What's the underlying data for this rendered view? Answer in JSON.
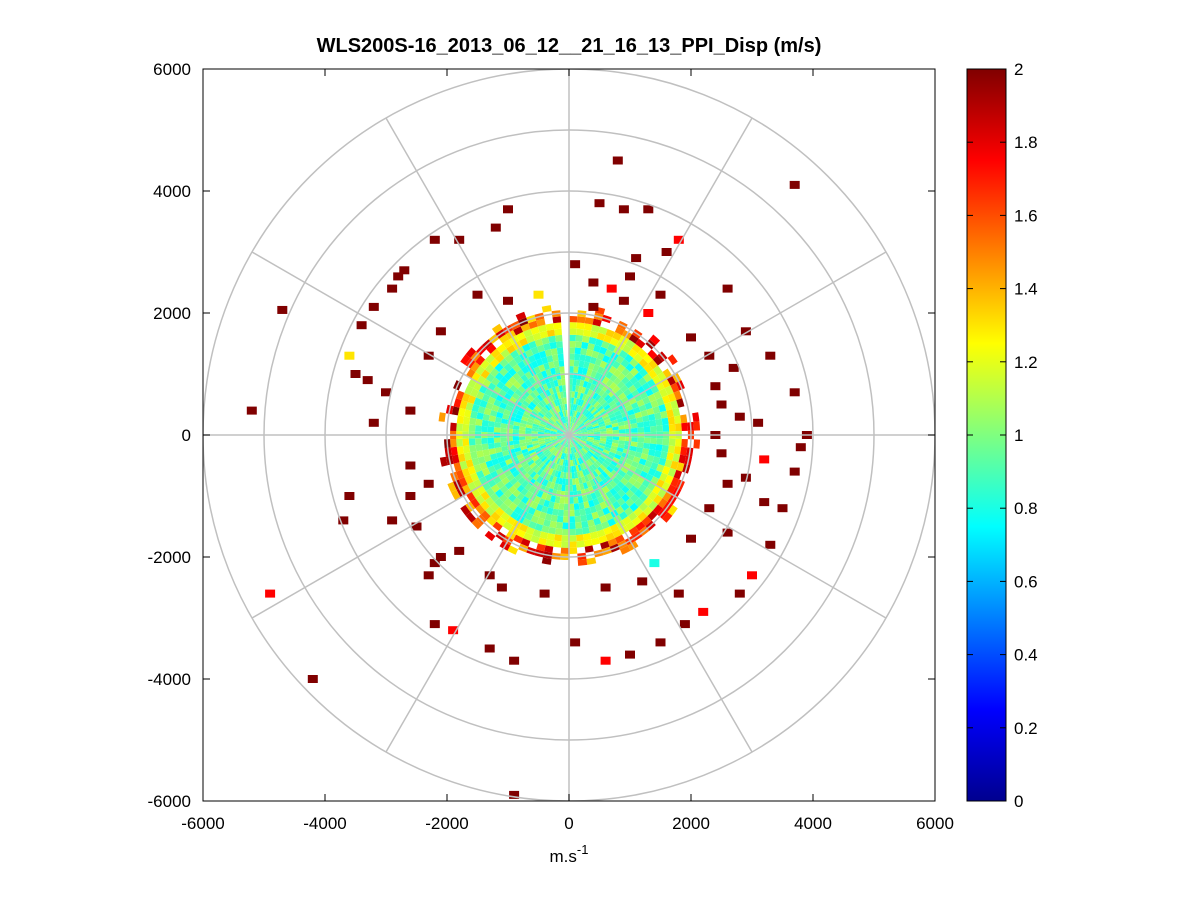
{
  "chart_data": {
    "type": "heatmap",
    "subtype": "polar-ppi",
    "title": "WLS200S-16_2013_06_12__21_16_13_PPI_Disp (m/s)",
    "xlabel": "m.s",
    "xlabel_sup": "-1",
    "ylabel": "",
    "xlim": [
      -6000,
      6000
    ],
    "ylim": [
      -6000,
      6000
    ],
    "x_ticks": [
      -6000,
      -4000,
      -2000,
      0,
      2000,
      4000,
      6000
    ],
    "y_ticks": [
      -6000,
      -4000,
      -2000,
      0,
      2000,
      4000,
      6000
    ],
    "x_tick_labels": [
      "-6000",
      "-4000",
      "-2000",
      "0",
      "2000",
      "4000",
      "6000"
    ],
    "y_tick_labels": [
      "-6000",
      "-4000",
      "-2000",
      "0",
      "2000",
      "4000",
      "6000"
    ],
    "polar_grid": {
      "rings": [
        1000,
        2000,
        3000,
        4000,
        5000,
        6000
      ],
      "spokes_deg": [
        0,
        30,
        60,
        90,
        120,
        150,
        180,
        210,
        240,
        270,
        300,
        330
      ],
      "color": "#c0c0c0"
    },
    "colorbar": {
      "colormap": "jet",
      "min": 0,
      "max": 2,
      "ticks": [
        0,
        0.2,
        0.4,
        0.6,
        0.8,
        1,
        1.2,
        1.4,
        1.6,
        1.8,
        2
      ],
      "tick_labels": [
        "0",
        "0.2",
        "0.4",
        "0.6",
        "0.8",
        "1",
        "1.2",
        "1.4",
        "1.6",
        "1.8",
        "2"
      ]
    },
    "field": {
      "inner_core_radius": 1850,
      "inner_core_value_range": [
        0.75,
        1.1
      ],
      "edge_ring_radius": [
        1850,
        2150
      ],
      "edge_ring_value_range": [
        1.3,
        2
      ],
      "data_gap_azimuth_deg": [
        355,
        360
      ]
    },
    "scatter_cells": [
      {
        "x": -4700,
        "y": 2050,
        "v": 2
      },
      {
        "x": -5200,
        "y": 400,
        "v": 2
      },
      {
        "x": -4200,
        "y": -4000,
        "v": 2
      },
      {
        "x": -4900,
        "y": -2600,
        "v": 1.75
      },
      {
        "x": -900,
        "y": -5900,
        "v": 2
      },
      {
        "x": 800,
        "y": 4500,
        "v": 2
      },
      {
        "x": 3700,
        "y": 4100,
        "v": 2
      },
      {
        "x": -1000,
        "y": 3700,
        "v": 2
      },
      {
        "x": -2200,
        "y": 3200,
        "v": 2
      },
      {
        "x": -1800,
        "y": 3200,
        "v": 2
      },
      {
        "x": -2700,
        "y": 2700,
        "v": 2
      },
      {
        "x": -2900,
        "y": 2400,
        "v": 2
      },
      {
        "x": -3600,
        "y": 1300,
        "v": 1.3
      },
      {
        "x": -3500,
        "y": 1000,
        "v": 2
      },
      {
        "x": -3300,
        "y": 900,
        "v": 2
      },
      {
        "x": -3000,
        "y": 700,
        "v": 2
      },
      {
        "x": -3200,
        "y": 200,
        "v": 2
      },
      {
        "x": -2600,
        "y": 400,
        "v": 2
      },
      {
        "x": -3600,
        "y": -1000,
        "v": 2
      },
      {
        "x": -2900,
        "y": -1400,
        "v": 2
      },
      {
        "x": -2500,
        "y": -1500,
        "v": 2
      },
      {
        "x": -2300,
        "y": -800,
        "v": 2
      },
      {
        "x": -2600,
        "y": -500,
        "v": 2
      },
      {
        "x": -2100,
        "y": -2000,
        "v": 2
      },
      {
        "x": -2200,
        "y": -2100,
        "v": 2
      },
      {
        "x": -2300,
        "y": -2300,
        "v": 2
      },
      {
        "x": -2200,
        "y": -3100,
        "v": 2
      },
      {
        "x": -1900,
        "y": -3200,
        "v": 1.75
      },
      {
        "x": -1300,
        "y": -3500,
        "v": 2
      },
      {
        "x": -900,
        "y": -3700,
        "v": 2
      },
      {
        "x": 100,
        "y": -3400,
        "v": 2
      },
      {
        "x": 600,
        "y": -3700,
        "v": 1.75
      },
      {
        "x": 1000,
        "y": -3600,
        "v": 2
      },
      {
        "x": 1500,
        "y": -3400,
        "v": 2
      },
      {
        "x": 1900,
        "y": -3100,
        "v": 2
      },
      {
        "x": 2200,
        "y": -2900,
        "v": 1.75
      },
      {
        "x": 2800,
        "y": -2600,
        "v": 2
      },
      {
        "x": 3000,
        "y": -2300,
        "v": 1.75
      },
      {
        "x": 3300,
        "y": -1800,
        "v": 2
      },
      {
        "x": 3500,
        "y": -1200,
        "v": 2
      },
      {
        "x": 3700,
        "y": -600,
        "v": 2
      },
      {
        "x": 3900,
        "y": 0,
        "v": 2
      },
      {
        "x": 3700,
        "y": 700,
        "v": 2
      },
      {
        "x": 3300,
        "y": 1300,
        "v": 2
      },
      {
        "x": 2900,
        "y": 1700,
        "v": 2
      },
      {
        "x": 2600,
        "y": 2400,
        "v": 2
      },
      {
        "x": 1500,
        "y": 2300,
        "v": 2
      },
      {
        "x": 1000,
        "y": 2600,
        "v": 2
      },
      {
        "x": 1100,
        "y": 2900,
        "v": 2
      },
      {
        "x": 1600,
        "y": 3000,
        "v": 2
      },
      {
        "x": 1800,
        "y": 3200,
        "v": 1.75
      },
      {
        "x": 500,
        "y": 3800,
        "v": 2
      },
      {
        "x": 900,
        "y": 3700,
        "v": 2
      },
      {
        "x": 1300,
        "y": 3700,
        "v": 2
      },
      {
        "x": 2700,
        "y": 1100,
        "v": 2
      },
      {
        "x": 2400,
        "y": 800,
        "v": 2
      },
      {
        "x": 2800,
        "y": 300,
        "v": 2
      },
      {
        "x": 3200,
        "y": -400,
        "v": 1.75
      },
      {
        "x": 2600,
        "y": -800,
        "v": 2
      },
      {
        "x": 2300,
        "y": -1200,
        "v": 2
      },
      {
        "x": 2600,
        "y": -1600,
        "v": 2
      },
      {
        "x": 1800,
        "y": -2600,
        "v": 2
      },
      {
        "x": 1200,
        "y": -2400,
        "v": 2
      },
      {
        "x": -400,
        "y": -2600,
        "v": 2
      },
      {
        "x": -1100,
        "y": -2500,
        "v": 2
      },
      {
        "x": -3700,
        "y": -1400,
        "v": 2
      },
      {
        "x": -3400,
        "y": 1800,
        "v": 2
      },
      {
        "x": -3200,
        "y": 2100,
        "v": 2
      },
      {
        "x": -2800,
        "y": 2600,
        "v": 2
      },
      {
        "x": 100,
        "y": 2800,
        "v": 2
      },
      {
        "x": 400,
        "y": 2500,
        "v": 2
      },
      {
        "x": 700,
        "y": 2400,
        "v": 1.75
      },
      {
        "x": -500,
        "y": 2300,
        "v": 1.3
      },
      {
        "x": -1000,
        "y": 2200,
        "v": 2
      },
      {
        "x": 1300,
        "y": 2000,
        "v": 1.75
      },
      {
        "x": 2000,
        "y": 1600,
        "v": 2
      },
      {
        "x": 2300,
        "y": 1300,
        "v": 2
      },
      {
        "x": 2500,
        "y": 500,
        "v": 2
      },
      {
        "x": 2400,
        "y": 0,
        "v": 2
      },
      {
        "x": 2500,
        "y": -300,
        "v": 2
      },
      {
        "x": 2000,
        "y": -1700,
        "v": 2
      },
      {
        "x": 1400,
        "y": -2100,
        "v": 0.8
      },
      {
        "x": 600,
        "y": -2500,
        "v": 2
      },
      {
        "x": -1300,
        "y": -2300,
        "v": 2
      },
      {
        "x": -1800,
        "y": -1900,
        "v": 2
      },
      {
        "x": -2600,
        "y": -1000,
        "v": 2
      },
      {
        "x": -2300,
        "y": 1300,
        "v": 2
      },
      {
        "x": -2100,
        "y": 1700,
        "v": 2
      },
      {
        "x": -1500,
        "y": 2300,
        "v": 2
      },
      {
        "x": -1200,
        "y": 3400,
        "v": 2
      },
      {
        "x": 400,
        "y": 2100,
        "v": 2
      },
      {
        "x": 900,
        "y": 2200,
        "v": 2
      },
      {
        "x": 2900,
        "y": -700,
        "v": 2
      },
      {
        "x": 3100,
        "y": 200,
        "v": 2
      },
      {
        "x": 3800,
        "y": -200,
        "v": 2
      },
      {
        "x": 3200,
        "y": -1100,
        "v": 2
      }
    ]
  }
}
